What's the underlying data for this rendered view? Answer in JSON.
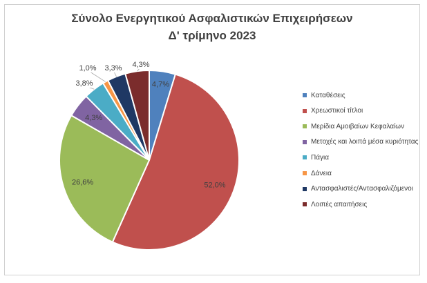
{
  "chart_data": {
    "type": "pie",
    "title": [
      "Σύνολο Ενεργητικού Ασφαλιστικών Επιχειρήσεων",
      "Δ' τρίμηνο 2023"
    ],
    "categories": [
      "Καταθέσεις",
      "Χρεωστικοί τίτλοι",
      "Μερίδια Αμοιβαίων Κεφαλαίων",
      "Μετοχές και λοιπά μέσα κυριότητας",
      "Πάγια",
      "Δάνεια",
      "Αντασφαλιστές/Αντασφαλιζόμενοι",
      "Λοιπές απαιτήσεις"
    ],
    "values": [
      4.7,
      52.0,
      26.6,
      4.3,
      3.8,
      1.0,
      3.3,
      4.3
    ],
    "labels": [
      "4,7%",
      "52,0%",
      "26,6%",
      "4,3%",
      "3,8%",
      "1,0%",
      "3,3%",
      "4,3%"
    ],
    "colors": [
      "#4f81bd",
      "#c0504d",
      "#9bbb59",
      "#8064a2",
      "#4bacc6",
      "#f79646",
      "#1f3864",
      "#7b2c2c"
    ],
    "legend_position": "right"
  }
}
